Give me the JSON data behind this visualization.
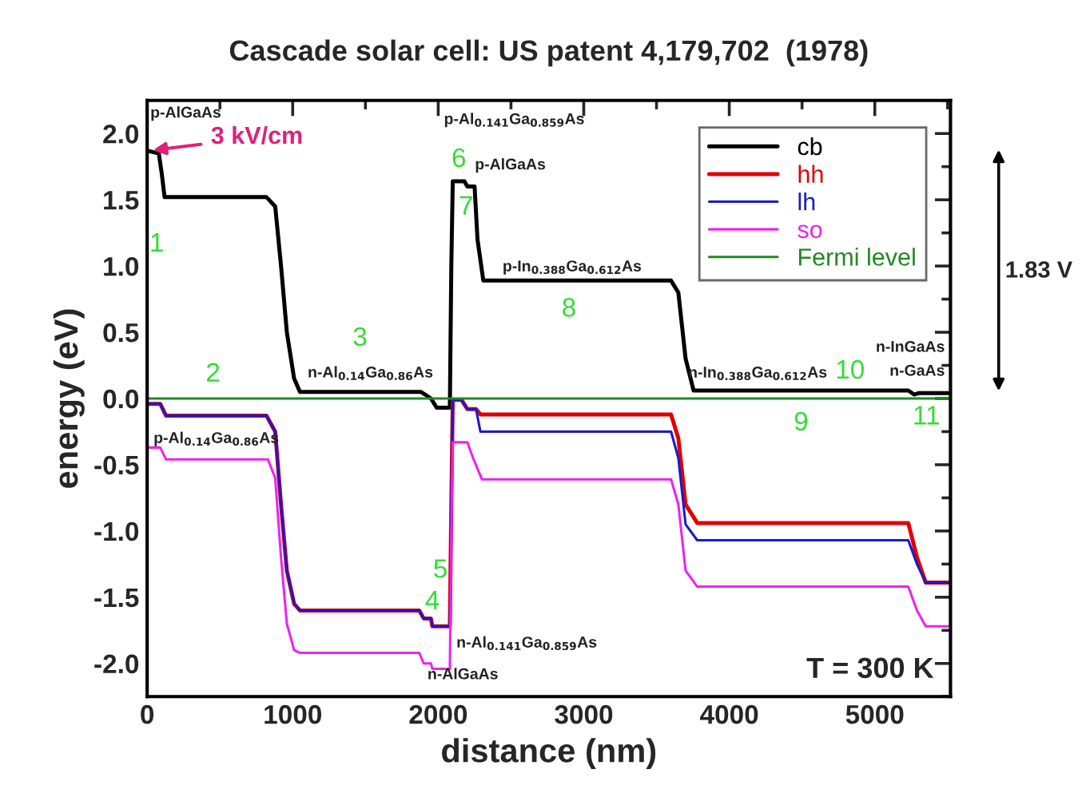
{
  "chart_data": {
    "type": "line",
    "title": "Cascade solar cell: US patent 4,179,702  (1978)",
    "xlabel": "distance (nm)",
    "ylabel": "energy (eV)",
    "xlim": [
      0,
      5520
    ],
    "xticks": [
      0,
      1000,
      2000,
      3000,
      4000,
      5000
    ],
    "ylim": [
      -2.25,
      2.25
    ],
    "yticks": [
      {
        "value": -2.0,
        "label": "-2.0"
      },
      {
        "value": -1.5,
        "label": "-1.5"
      },
      {
        "value": -1.0,
        "label": "-1.0"
      },
      {
        "value": -0.5,
        "label": "-0.5"
      },
      {
        "value": 0.0,
        "label": "0.0"
      },
      {
        "value": 0.5,
        "label": "0.5"
      },
      {
        "value": 1.0,
        "label": "1.0"
      },
      {
        "value": 1.5,
        "label": "1.5"
      },
      {
        "value": 2.0,
        "label": "2.0"
      }
    ],
    "grid": false,
    "legend": "top right",
    "marker": "none",
    "line_style": "solid",
    "series": [
      {
        "name": "cb",
        "color": "#000000",
        "x": [
          0,
          80,
          100,
          120,
          820,
          880,
          920,
          960,
          1010,
          1050,
          1880,
          1910,
          1950,
          1990,
          2080,
          2090,
          2100,
          2180,
          2200,
          2250,
          2270,
          2310,
          3600,
          3650,
          3700,
          3755,
          5230,
          5270,
          5300,
          5330,
          5520
        ],
        "values": [
          1.87,
          1.85,
          1.7,
          1.52,
          1.52,
          1.45,
          1.0,
          0.5,
          0.15,
          0.05,
          0.05,
          0.03,
          0.0,
          -0.07,
          -0.07,
          1.0,
          1.64,
          1.64,
          1.6,
          1.6,
          1.2,
          0.89,
          0.89,
          0.8,
          0.3,
          0.06,
          0.06,
          0.03,
          0.04,
          0.04,
          0.04
        ]
      },
      {
        "name": "hh",
        "color": "#e00000",
        "x": [
          0,
          90,
          130,
          820,
          880,
          920,
          960,
          1010,
          1050,
          1870,
          1900,
          1950,
          1960,
          2080,
          2090,
          2100,
          2160,
          2200,
          2260,
          2290,
          3600,
          3650,
          3700,
          3780,
          5230,
          5290,
          5350,
          5520
        ],
        "values": [
          -0.04,
          -0.04,
          -0.13,
          -0.13,
          -0.25,
          -0.8,
          -1.3,
          -1.55,
          -1.6,
          -1.6,
          -1.66,
          -1.66,
          -1.72,
          -1.72,
          -0.8,
          -0.01,
          -0.01,
          -0.08,
          -0.08,
          -0.12,
          -0.12,
          -0.3,
          -0.8,
          -0.94,
          -0.94,
          -1.2,
          -1.39,
          -1.39
        ]
      },
      {
        "name": "lh",
        "color": "#1a1acc",
        "x": [
          0,
          90,
          130,
          820,
          880,
          920,
          960,
          1010,
          1050,
          1870,
          1900,
          1950,
          1960,
          2080,
          2090,
          2100,
          2160,
          2200,
          2260,
          2290,
          3600,
          3650,
          3700,
          3780,
          5230,
          5290,
          5350,
          5520
        ],
        "values": [
          -0.04,
          -0.04,
          -0.13,
          -0.13,
          -0.25,
          -0.8,
          -1.3,
          -1.55,
          -1.6,
          -1.6,
          -1.66,
          -1.66,
          -1.72,
          -1.72,
          -0.8,
          -0.01,
          -0.01,
          -0.08,
          -0.08,
          -0.25,
          -0.25,
          -0.45,
          -0.95,
          -1.07,
          -1.07,
          -1.25,
          -1.39,
          -1.39
        ]
      },
      {
        "name": "so",
        "color": "#ee22ee",
        "x": [
          0,
          90,
          130,
          830,
          880,
          920,
          960,
          1010,
          1050,
          1870,
          1900,
          1950,
          1960,
          2080,
          2090,
          2100,
          2200,
          2240,
          2300,
          3600,
          3650,
          3700,
          3780,
          5230,
          5290,
          5350,
          5520
        ],
        "values": [
          -0.37,
          -0.37,
          -0.46,
          -0.46,
          -0.6,
          -1.2,
          -1.7,
          -1.9,
          -1.92,
          -1.92,
          -2.0,
          -2.0,
          -2.04,
          -2.04,
          -1.0,
          -0.33,
          -0.33,
          -0.45,
          -0.61,
          -0.61,
          -0.8,
          -1.3,
          -1.42,
          -1.42,
          -1.6,
          -1.72,
          -1.72
        ]
      },
      {
        "name": "Fermi level",
        "color": "#228822",
        "x": [
          0,
          5520
        ],
        "values": [
          0.0,
          0.0
        ]
      }
    ],
    "annotations": [
      {
        "text": "3 kV/cm",
        "x": 10,
        "y": 1.87
      },
      "1.83 V",
      "T = 300 K",
      "p-AlGaAs",
      "1",
      "2",
      "3",
      "n-Al$_{0.14}$Ga$_{0.86}$As",
      "p-Al$_{0.14}$Ga$_{0.86}$As",
      "4",
      "5",
      "n-Al$_{0.141}$Ga$_{0.859}$As",
      "n-AlGaAs",
      "p-Al$_{0.141}$Ga$_{0.859}$As",
      "6",
      "p-AlGaAs",
      "7",
      "p-In$_{0.388}$Ga$_{0.612}$As",
      "8",
      "n-In$_{0.388}$Ga$_{0.612}$As",
      "9",
      "10",
      "n-InGaAs",
      "n-GaAs",
      "11"
    ]
  }
}
